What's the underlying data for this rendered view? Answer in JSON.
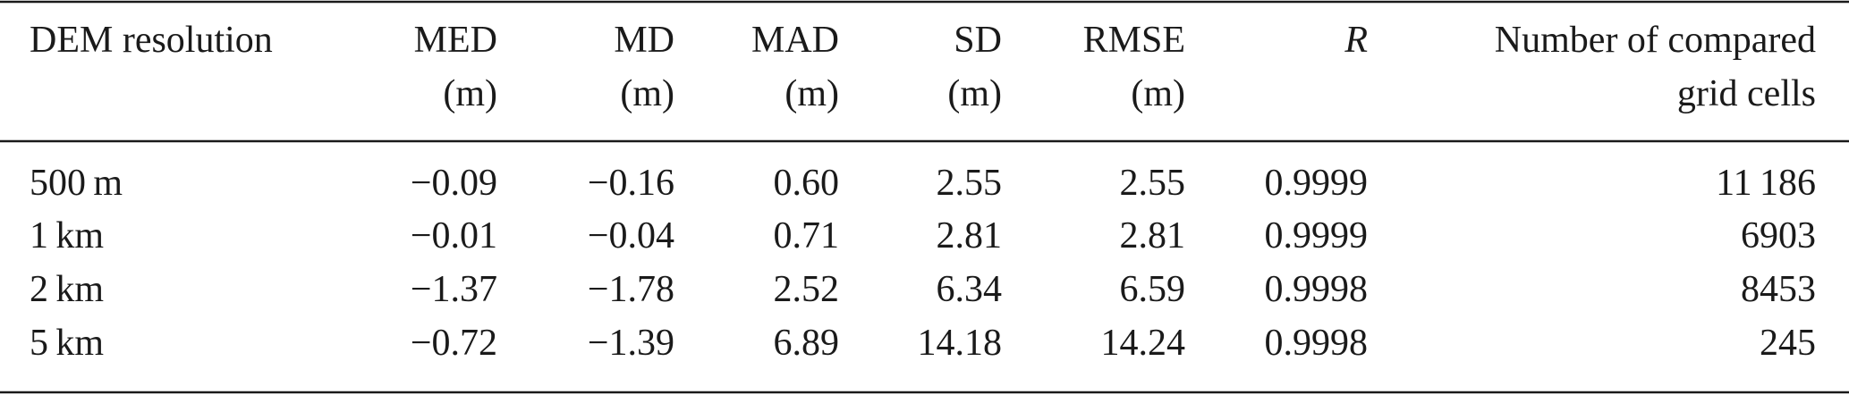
{
  "table": {
    "header": [
      [
        "DEM resolution"
      ],
      [
        "MED",
        "(m)"
      ],
      [
        "MD",
        "(m)"
      ],
      [
        "MAD",
        "(m)"
      ],
      [
        "SD",
        "(m)"
      ],
      [
        "RMSE",
        "(m)"
      ],
      [
        "R"
      ],
      [
        "Number of compared",
        "grid cells"
      ]
    ],
    "rows": [
      [
        "500 m",
        "−0.09",
        "−0.16",
        "0.60",
        "2.55",
        "2.55",
        "0.9999",
        "11 186"
      ],
      [
        "1 km",
        "−0.01",
        "−0.04",
        "0.71",
        "2.81",
        "2.81",
        "0.9999",
        "6903"
      ],
      [
        "2 km",
        "−1.37",
        "−1.78",
        "2.52",
        "6.34",
        "6.59",
        "0.9998",
        "8453"
      ],
      [
        "5 km",
        "−0.72",
        "−1.39",
        "6.89",
        "14.18",
        "14.24",
        "0.9998",
        "245"
      ]
    ]
  }
}
